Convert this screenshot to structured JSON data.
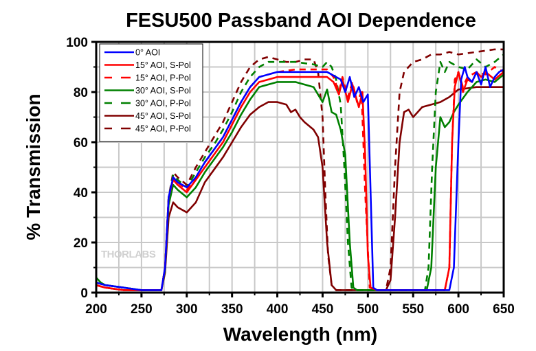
{
  "chart_data": {
    "type": "line",
    "title": "FESU500 Passband AOI Dependence",
    "xlabel": "Wavelength (nm)",
    "ylabel": "% Transmission",
    "xlim": [
      200,
      650
    ],
    "ylim": [
      0,
      100
    ],
    "xticks": [
      200,
      250,
      300,
      350,
      400,
      450,
      500,
      550,
      600,
      650
    ],
    "yticks": [
      0,
      20,
      40,
      60,
      80,
      100
    ],
    "grid": true,
    "legend_position": "top-left",
    "watermark": "THORLABS",
    "series": [
      {
        "name": "0° AOI",
        "color": "#0000ff",
        "dashed": false,
        "x": [
          200,
          210,
          230,
          250,
          272,
          276,
          280,
          285,
          290,
          300,
          310,
          320,
          330,
          340,
          350,
          360,
          370,
          380,
          400,
          420,
          440,
          455,
          465,
          470,
          475,
          480,
          485,
          490,
          495,
          500,
          503,
          506,
          510,
          540,
          570,
          590,
          595,
          600,
          603,
          607,
          610,
          615,
          620,
          625,
          630,
          635,
          640,
          645,
          650
        ],
        "y": [
          4,
          3,
          2,
          1,
          1,
          10,
          38,
          46,
          44,
          42,
          46,
          52,
          57,
          62,
          69,
          76,
          82,
          86,
          88,
          88,
          88,
          88,
          86,
          85,
          80,
          86,
          78,
          82,
          76,
          79,
          40,
          2,
          1,
          1,
          1,
          1,
          10,
          60,
          85,
          90,
          86,
          84,
          88,
          83,
          90,
          82,
          86,
          88,
          89
        ]
      },
      {
        "name": "15° AOI, S-Pol",
        "color": "#ff0000",
        "dashed": false,
        "x": [
          200,
          210,
          230,
          250,
          272,
          276,
          280,
          285,
          290,
          300,
          310,
          320,
          330,
          340,
          350,
          360,
          370,
          380,
          400,
          420,
          440,
          455,
          462,
          468,
          472,
          478,
          483,
          490,
          494,
          497,
          500,
          503,
          510,
          540,
          570,
          585,
          590,
          593,
          596,
          600,
          605,
          610,
          615,
          620,
          625,
          630,
          640,
          650
        ],
        "y": [
          3,
          2,
          1,
          1,
          1,
          10,
          38,
          45,
          43,
          40,
          45,
          50,
          55,
          60,
          67,
          74,
          80,
          84,
          86,
          86,
          86,
          86,
          84,
          79,
          85,
          76,
          83,
          74,
          80,
          55,
          15,
          2,
          1,
          1,
          1,
          1,
          10,
          60,
          82,
          88,
          80,
          85,
          84,
          88,
          86,
          88,
          85,
          88
        ]
      },
      {
        "name": "15° AOI, P-Pol",
        "color": "#ff0000",
        "dashed": true,
        "x": [
          200,
          210,
          230,
          250,
          272,
          276,
          280,
          285,
          290,
          300,
          310,
          320,
          330,
          340,
          350,
          360,
          370,
          380,
          400,
          420,
          440,
          455,
          462,
          468,
          472,
          478,
          483,
          488,
          493,
          497,
          502,
          510,
          540,
          570,
          585,
          590,
          593,
          596,
          600,
          605,
          610,
          620,
          630,
          640,
          650
        ],
        "y": [
          3,
          2,
          1,
          1,
          1,
          10,
          38,
          46,
          44,
          41,
          46,
          52,
          57,
          62,
          69,
          76,
          82,
          86,
          88,
          89,
          89,
          89,
          86,
          80,
          86,
          78,
          84,
          76,
          80,
          40,
          2,
          1,
          1,
          1,
          1,
          10,
          60,
          85,
          88,
          82,
          86,
          88,
          87,
          90,
          88
        ]
      },
      {
        "name": "30° AOI, S-Pol",
        "color": "#008000",
        "dashed": false,
        "x": [
          200,
          205,
          210,
          230,
          250,
          272,
          276,
          280,
          285,
          290,
          300,
          310,
          320,
          330,
          340,
          350,
          360,
          370,
          380,
          400,
          420,
          440,
          450,
          455,
          460,
          465,
          470,
          475,
          480,
          484,
          488,
          495,
          540,
          565,
          570,
          575,
          580,
          585,
          590,
          595,
          600,
          610,
          620,
          630,
          640,
          650
        ],
        "y": [
          6,
          4,
          3,
          2,
          1,
          1,
          9,
          35,
          43,
          41,
          38,
          42,
          48,
          53,
          58,
          64,
          71,
          77,
          82,
          84,
          84,
          82,
          76,
          81,
          72,
          71,
          65,
          55,
          20,
          2,
          1,
          1,
          1,
          1,
          10,
          50,
          70,
          66,
          68,
          72,
          75,
          80,
          84,
          85,
          84,
          87
        ]
      },
      {
        "name": "30° AOI, P-Pol",
        "color": "#008000",
        "dashed": true,
        "x": [
          200,
          210,
          230,
          250,
          272,
          276,
          280,
          285,
          290,
          300,
          310,
          320,
          330,
          340,
          350,
          360,
          370,
          380,
          390,
          400,
          420,
          440,
          450,
          455,
          460,
          465,
          470,
          474,
          478,
          482,
          486,
          540,
          563,
          567,
          571,
          575,
          580,
          585,
          590,
          600,
          610,
          620,
          630,
          640,
          650
        ],
        "y": [
          4,
          3,
          2,
          1,
          1,
          10,
          38,
          47,
          45,
          42,
          48,
          54,
          59,
          65,
          72,
          80,
          86,
          90,
          92,
          92,
          92,
          91,
          90,
          92,
          90,
          85,
          75,
          50,
          20,
          2,
          1,
          1,
          1,
          10,
          50,
          80,
          92,
          88,
          92,
          90,
          89,
          93,
          90,
          92,
          95
        ]
      },
      {
        "name": "45° AOI, S-Pol",
        "color": "#800000",
        "dashed": false,
        "x": [
          200,
          210,
          230,
          250,
          272,
          276,
          280,
          285,
          290,
          300,
          310,
          320,
          330,
          340,
          350,
          360,
          370,
          380,
          390,
          400,
          410,
          415,
          420,
          425,
          430,
          440,
          445,
          450,
          455,
          460,
          465,
          470,
          480,
          520,
          525,
          530,
          535,
          540,
          545,
          550,
          555,
          560,
          570,
          580,
          590,
          600,
          620,
          640,
          650
        ],
        "y": [
          3,
          2,
          1,
          1,
          1,
          8,
          30,
          36,
          34,
          32,
          36,
          44,
          49,
          54,
          60,
          66,
          71,
          74,
          76,
          76,
          75,
          72,
          73,
          70,
          68,
          65,
          62,
          50,
          20,
          3,
          1,
          1,
          1,
          1,
          5,
          30,
          60,
          72,
          73,
          70,
          72,
          74,
          75,
          76,
          78,
          81,
          82,
          82,
          82
        ]
      },
      {
        "name": "45° AOI, P-Pol",
        "color": "#800000",
        "dashed": true,
        "x": [
          200,
          210,
          230,
          250,
          272,
          276,
          280,
          285,
          290,
          300,
          310,
          320,
          330,
          340,
          350,
          360,
          370,
          380,
          390,
          400,
          410,
          420,
          430,
          440,
          445,
          450,
          453,
          456,
          460,
          465,
          520,
          525,
          530,
          535,
          540,
          545,
          550,
          560,
          570,
          580,
          590,
          600,
          620,
          640,
          650
        ],
        "y": [
          4,
          3,
          2,
          1,
          1,
          10,
          38,
          48,
          46,
          43,
          50,
          56,
          62,
          68,
          76,
          84,
          90,
          93,
          94,
          93,
          92,
          92,
          93,
          93,
          88,
          70,
          40,
          15,
          3,
          1,
          1,
          10,
          50,
          80,
          88,
          90,
          92,
          93,
          95,
          95,
          96,
          95,
          96,
          97,
          97
        ]
      }
    ]
  }
}
